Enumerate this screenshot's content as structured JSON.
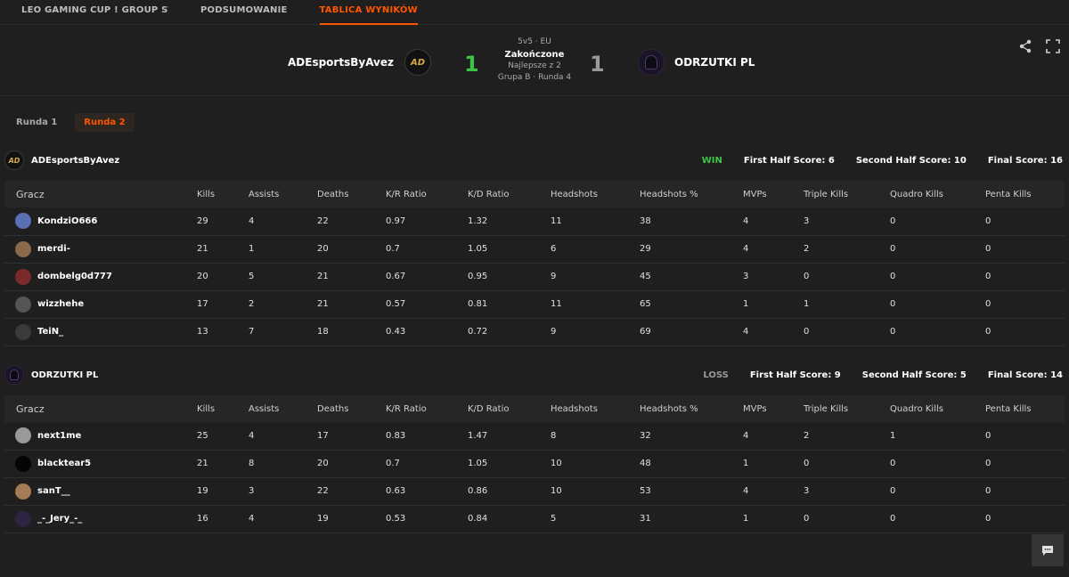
{
  "nav": {
    "tabs": [
      {
        "label": "LEO GAMING CUP ! GROUP STA..."
      },
      {
        "label": "PODSUMOWANIE"
      },
      {
        "label": "TABLICA WYNIKÓW"
      }
    ]
  },
  "match": {
    "team_left": "ADEsportsByAvez",
    "team_right": "ODRZUTKI PL",
    "logo_left_text": "AD",
    "score_left": "1",
    "score_right": "1",
    "mode": "5v5 · EU",
    "status": "Zakończone",
    "best_of": "Najlepsze z 2",
    "group": "Grupa B · Runda 4",
    "colors": {
      "win": "#3fc24a",
      "accent": "#ff5500"
    }
  },
  "rounds": [
    "Runda 1",
    "Runda 2"
  ],
  "columns": [
    "Gracz",
    "Kills",
    "Assists",
    "Deaths",
    "K/R Ratio",
    "K/D Ratio",
    "Headshots",
    "Headshots %",
    "MVPs",
    "Triple Kills",
    "Quadro Kills",
    "Penta Kills"
  ],
  "teams": [
    {
      "name": "ADEsportsByAvez",
      "logo_text": "AD",
      "result": "WIN",
      "first_half": "First Half Score: 6",
      "second_half": "Second Half Score: 10",
      "final": "Final Score: 16",
      "players": [
        {
          "name": "KondziO666",
          "stats": [
            "29",
            "4",
            "22",
            "0.97",
            "1.32",
            "11",
            "38",
            "4",
            "3",
            "0",
            "0"
          ],
          "avatar": "#5b6fb5"
        },
        {
          "name": "merdi-",
          "stats": [
            "21",
            "1",
            "20",
            "0.7",
            "1.05",
            "6",
            "29",
            "4",
            "2",
            "0",
            "0"
          ],
          "avatar": "#8a6a4a"
        },
        {
          "name": "dombelg0d777",
          "stats": [
            "20",
            "5",
            "21",
            "0.67",
            "0.95",
            "9",
            "45",
            "3",
            "0",
            "0",
            "0"
          ],
          "avatar": "#7a2a2a"
        },
        {
          "name": "wizzhehe",
          "stats": [
            "17",
            "2",
            "21",
            "0.57",
            "0.81",
            "11",
            "65",
            "1",
            "1",
            "0",
            "0"
          ],
          "avatar": "#555555"
        },
        {
          "name": "TeiN_",
          "stats": [
            "13",
            "7",
            "18",
            "0.43",
            "0.72",
            "9",
            "69",
            "4",
            "0",
            "0",
            "0"
          ],
          "avatar": "#3a3a3a"
        }
      ]
    },
    {
      "name": "ODRZUTKI PL",
      "result": "LOSS",
      "first_half": "First Half Score: 9",
      "second_half": "Second Half Score: 5",
      "final": "Final Score: 14",
      "players": [
        {
          "name": "next1me",
          "stats": [
            "25",
            "4",
            "17",
            "0.83",
            "1.47",
            "8",
            "32",
            "4",
            "2",
            "1",
            "0"
          ],
          "avatar": "#9a9a9a"
        },
        {
          "name": "blacktear5",
          "stats": [
            "21",
            "8",
            "20",
            "0.7",
            "1.05",
            "10",
            "48",
            "1",
            "0",
            "0",
            "0"
          ],
          "avatar": "#050505"
        },
        {
          "name": "sanT__",
          "stats": [
            "19",
            "3",
            "22",
            "0.63",
            "0.86",
            "10",
            "53",
            "4",
            "3",
            "0",
            "0"
          ],
          "avatar": "#a57a55"
        },
        {
          "name": "_-_Jery_-_",
          "stats": [
            "16",
            "4",
            "19",
            "0.53",
            "0.84",
            "5",
            "31",
            "1",
            "0",
            "0",
            "0"
          ],
          "avatar": "#2e2340"
        }
      ]
    }
  ],
  "icons": {
    "share": "share-icon",
    "fullscreen": "fullscreen-icon",
    "chat": "chat-icon"
  }
}
